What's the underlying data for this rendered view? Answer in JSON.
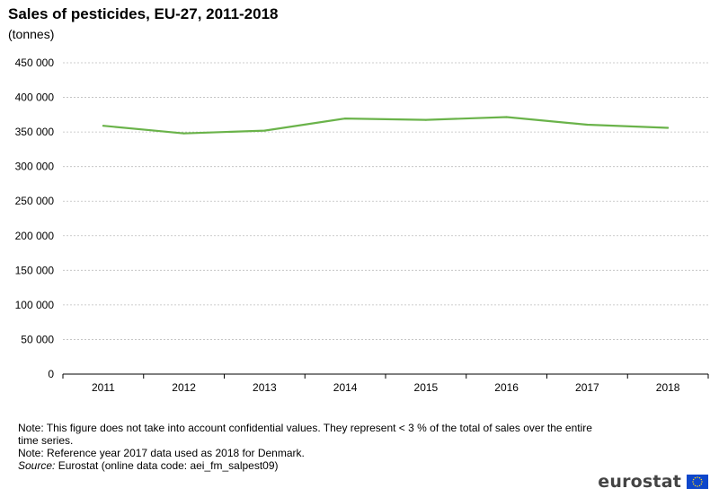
{
  "title": "Sales of pesticides, EU-27, 2011-2018",
  "subtitle": "(tonnes)",
  "notes": {
    "note1": "Note: This figure does not take into account confidential values. They represent < 3 % of the total of sales over the entire time series.",
    "note2": "Note: Reference year 2017 data used as 2018 for Denmark.",
    "source_label": "Source:",
    "source_text": " Eurostat (online data code: aei_fm_salpest09)"
  },
  "logo_text": "eurostat",
  "colors": {
    "line": "#6ab34a",
    "grid": "#bdbdbd",
    "axis": "#000000",
    "eu_blue": "#0e47cb",
    "eu_star": "#ffd617"
  },
  "chart_data": {
    "type": "line",
    "title": "Sales of pesticides, EU-27, 2011-2018",
    "subtitle": "(tonnes)",
    "xlabel": "",
    "ylabel": "",
    "categories": [
      "2011",
      "2012",
      "2013",
      "2014",
      "2015",
      "2016",
      "2017",
      "2018"
    ],
    "series": [
      {
        "values": [
          359000,
          348000,
          352000,
          369500,
          367500,
          371500,
          360500,
          356000
        ]
      }
    ],
    "ylim": [
      0,
      450000
    ],
    "yticks": [
      0,
      50000,
      100000,
      150000,
      200000,
      250000,
      300000,
      350000,
      400000,
      450000
    ],
    "ytick_labels": [
      "0",
      "50 000",
      "100 000",
      "150 000",
      "200 000",
      "250 000",
      "300 000",
      "350 000",
      "400 000",
      "450 000"
    ],
    "grid": "horizontal",
    "legend": "none"
  }
}
